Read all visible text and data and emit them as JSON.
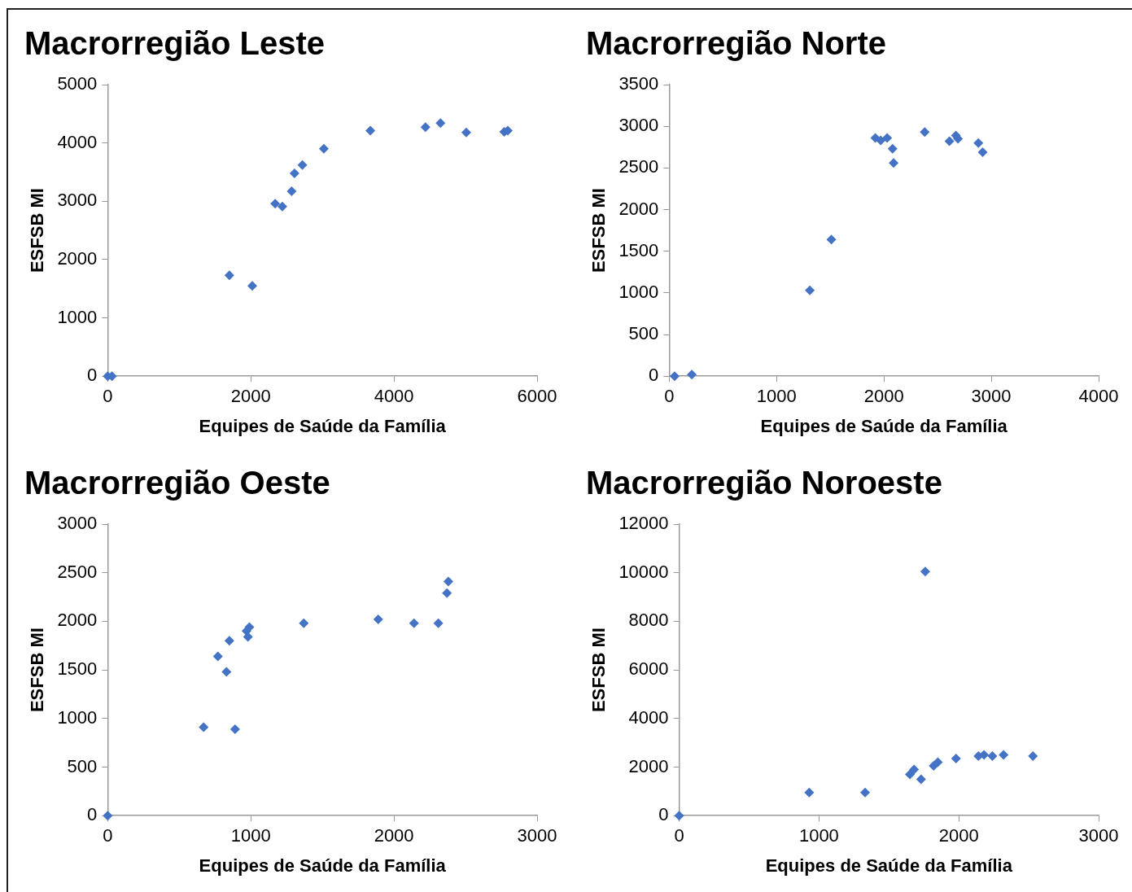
{
  "chart_data": [
    {
      "type": "scatter",
      "title": "Macrorregião Leste",
      "xlabel": "Equipes de Saúde da Família",
      "ylabel": "ESFSB MI",
      "color": "#4472c4",
      "marker": "diamond",
      "grid": false,
      "legend": false,
      "xlim": [
        0,
        6000
      ],
      "xticks": [
        0,
        2000,
        4000,
        6000
      ],
      "ylim": [
        0,
        5000
      ],
      "yticks": [
        0,
        1000,
        2000,
        3000,
        4000,
        5000
      ],
      "x": [
        0,
        60,
        1700,
        2020,
        2340,
        2440,
        2570,
        2610,
        2720,
        3020,
        3670,
        4440,
        4650,
        5010,
        5540,
        5590
      ],
      "values": [
        0,
        0,
        1730,
        1550,
        2960,
        2910,
        3170,
        3480,
        3620,
        3900,
        4210,
        4270,
        4340,
        4180,
        4190,
        4210
      ]
    },
    {
      "type": "scatter",
      "title": "Macrorregião Norte",
      "xlabel": "Equipes de Saúde da Família",
      "ylabel": "ESFSB MI",
      "color": "#4472c4",
      "marker": "diamond",
      "grid": false,
      "legend": false,
      "xlim": [
        0,
        4000
      ],
      "xticks": [
        0,
        1000,
        2000,
        3000,
        4000
      ],
      "ylim": [
        0,
        3500
      ],
      "yticks": [
        0,
        500,
        1000,
        1500,
        2000,
        2500,
        3000,
        3500
      ],
      "x": [
        50,
        210,
        1310,
        1510,
        1920,
        1970,
        2030,
        2080,
        2090,
        2380,
        2610,
        2670,
        2690,
        2880,
        2920
      ],
      "values": [
        0,
        20,
        1030,
        1640,
        2860,
        2830,
        2860,
        2730,
        2560,
        2930,
        2820,
        2890,
        2850,
        2800,
        2690
      ]
    },
    {
      "type": "scatter",
      "title": "Macrorregião Oeste",
      "xlabel": "Equipes de Saúde da Família",
      "ylabel": "ESFSB MI",
      "color": "#4472c4",
      "marker": "diamond",
      "grid": false,
      "legend": false,
      "xlim": [
        0,
        3000
      ],
      "xticks": [
        0,
        1000,
        2000,
        3000
      ],
      "ylim": [
        0,
        3000
      ],
      "yticks": [
        0,
        500,
        1000,
        1500,
        2000,
        2500,
        3000
      ],
      "x": [
        0,
        670,
        770,
        850,
        830,
        890,
        970,
        990,
        980,
        1370,
        1890,
        2140,
        2310,
        2370,
        2380
      ],
      "values": [
        0,
        910,
        1640,
        1800,
        1480,
        890,
        1900,
        1940,
        1840,
        1980,
        2020,
        1980,
        1980,
        2290,
        2410
      ]
    },
    {
      "type": "scatter",
      "title": "Macrorregião Noroeste",
      "xlabel": "Equipes de Saúde da Família",
      "ylabel": "ESFSB MI",
      "color": "#4472c4",
      "marker": "diamond",
      "grid": false,
      "legend": false,
      "xlim": [
        0,
        3000
      ],
      "xticks": [
        0,
        1000,
        2000,
        3000
      ],
      "ylim": [
        0,
        12000
      ],
      "yticks": [
        0,
        2000,
        4000,
        6000,
        8000,
        10000,
        12000
      ],
      "x": [
        0,
        930,
        1330,
        1650,
        1680,
        1730,
        1760,
        1820,
        1850,
        1980,
        2140,
        2180,
        2240,
        2320,
        2530
      ],
      "values": [
        0,
        950,
        950,
        1700,
        1900,
        1500,
        10050,
        2050,
        2200,
        2350,
        2450,
        2500,
        2450,
        2500,
        2450
      ]
    }
  ]
}
